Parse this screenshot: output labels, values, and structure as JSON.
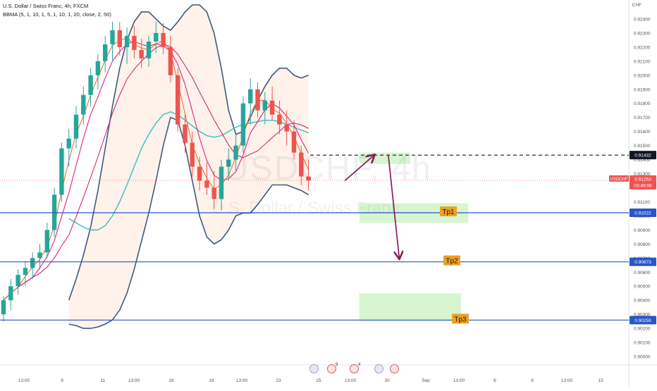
{
  "header": {
    "symbol_line": "U.S. Dollar / Swiss Franc, 4h, FXCM",
    "indicator_line": "BBMA (5, 1, 10, 1, 5, 1, 10, 1, 20, close, 2, 50)"
  },
  "watermark": {
    "ticker": "USDCHF, 4h",
    "name": "U.S. Dollar / Swiss Franc"
  },
  "currency_badge": "CHF",
  "chart_data": {
    "type": "candlestick",
    "symbol": "USDCHF",
    "timeframe": "4h",
    "source": "FXCM",
    "ylim": [
      0.8995,
      0.925
    ],
    "y_ticks": [
      "0.90000",
      "0.90100",
      "0.90200",
      "0.90300",
      "0.90400",
      "0.90500",
      "0.90600",
      "0.90700",
      "0.90800",
      "0.90900",
      "0.91000",
      "0.91100",
      "0.91200",
      "0.91300",
      "0.91400",
      "0.91500",
      "0.91600",
      "0.91700",
      "0.91800",
      "0.91900",
      "0.92000",
      "0.92100",
      "0.92200",
      "0.92300",
      "0.92400"
    ],
    "x_ticks": [
      "13:00",
      "9",
      "11",
      "13:00",
      "16",
      "18",
      "13:00",
      "23",
      "25",
      "13:00",
      "30",
      "Sep",
      "13:00",
      "6",
      "8",
      "13:00",
      "13"
    ],
    "current_price": {
      "label": "USDCHF",
      "value": "0.91253",
      "countdown": "03:49:08",
      "y": 0.91253
    },
    "levels": [
      {
        "name": "entry",
        "label": "",
        "value": 0.91432,
        "price_label": "0.91432",
        "style": "dashed",
        "color": "#131722"
      },
      {
        "name": "tp1",
        "label": "Tp1",
        "value": 0.91022,
        "price_label": "0.91022",
        "style": "solid",
        "color": "#2a55c8"
      },
      {
        "name": "tp2",
        "label": "Tp2",
        "value": 0.90673,
        "price_label": "0.90673",
        "style": "solid",
        "color": "#2a55c8"
      },
      {
        "name": "tp3",
        "label": "Tp3",
        "value": 0.90259,
        "price_label": "0.90259",
        "style": "solid",
        "color": "#2a55c8"
      }
    ],
    "zones": [
      {
        "from": 0.9137,
        "to": 0.9145,
        "x0": 49,
        "x1": 56
      },
      {
        "from": 0.9095,
        "to": 0.9109,
        "x0": 49,
        "x1": 64
      },
      {
        "from": 0.9025,
        "to": 0.9045,
        "x0": 49,
        "x1": 63
      }
    ],
    "arrows": [
      {
        "from": [
          47,
          0.9125
        ],
        "to": [
          51,
          0.9143
        ]
      },
      {
        "from": [
          53,
          0.9143
        ],
        "to": [
          54.5,
          0.907
        ]
      }
    ],
    "candles": [
      [
        0.903,
        0.9043,
        0.9025,
        0.904
      ],
      [
        0.904,
        0.9055,
        0.9033,
        0.905
      ],
      [
        0.905,
        0.9062,
        0.9044,
        0.9058
      ],
      [
        0.9058,
        0.9068,
        0.905,
        0.9063
      ],
      [
        0.9063,
        0.9074,
        0.9055,
        0.907
      ],
      [
        0.907,
        0.908,
        0.9062,
        0.9074
      ],
      [
        0.9074,
        0.9095,
        0.907,
        0.909
      ],
      [
        0.909,
        0.912,
        0.9085,
        0.9115
      ],
      [
        0.9115,
        0.9152,
        0.911,
        0.9148
      ],
      [
        0.9148,
        0.9162,
        0.9135,
        0.9155
      ],
      [
        0.9155,
        0.9178,
        0.9148,
        0.9172
      ],
      [
        0.9172,
        0.9192,
        0.9165,
        0.9186
      ],
      [
        0.9186,
        0.9205,
        0.9178,
        0.92
      ],
      [
        0.92,
        0.9215,
        0.919,
        0.921
      ],
      [
        0.921,
        0.9228,
        0.9202,
        0.9222
      ],
      [
        0.9222,
        0.9238,
        0.921,
        0.9232
      ],
      [
        0.9232,
        0.9238,
        0.9214,
        0.922
      ],
      [
        0.922,
        0.9234,
        0.9208,
        0.9228
      ],
      [
        0.9228,
        0.9235,
        0.9212,
        0.9218
      ],
      [
        0.9218,
        0.9226,
        0.9205,
        0.9212
      ],
      [
        0.9212,
        0.9228,
        0.9206,
        0.9224
      ],
      [
        0.9224,
        0.9238,
        0.9216,
        0.923
      ],
      [
        0.923,
        0.9237,
        0.9215,
        0.922
      ],
      [
        0.922,
        0.9228,
        0.9195,
        0.92
      ],
      [
        0.92,
        0.9205,
        0.916,
        0.9165
      ],
      [
        0.9165,
        0.9172,
        0.9145,
        0.9152
      ],
      [
        0.9152,
        0.916,
        0.9128,
        0.9135
      ],
      [
        0.9135,
        0.9142,
        0.9118,
        0.9125
      ],
      [
        0.9125,
        0.9138,
        0.9115,
        0.912
      ],
      [
        0.912,
        0.9132,
        0.9105,
        0.9112
      ],
      [
        0.9112,
        0.914,
        0.9104,
        0.9135
      ],
      [
        0.9135,
        0.9148,
        0.9125,
        0.914
      ],
      [
        0.914,
        0.9158,
        0.9132,
        0.915
      ],
      [
        0.915,
        0.9185,
        0.9145,
        0.918
      ],
      [
        0.918,
        0.9198,
        0.9165,
        0.919
      ],
      [
        0.919,
        0.9195,
        0.917,
        0.9175
      ],
      [
        0.9175,
        0.9188,
        0.9165,
        0.9182
      ],
      [
        0.9182,
        0.9192,
        0.9168,
        0.9172
      ],
      [
        0.9172,
        0.9182,
        0.9158,
        0.9165
      ],
      [
        0.9165,
        0.9175,
        0.915,
        0.916
      ],
      [
        0.916,
        0.9168,
        0.914,
        0.9145
      ],
      [
        0.9145,
        0.915,
        0.9122,
        0.9128
      ],
      [
        0.9128,
        0.914,
        0.9118,
        0.9125
      ]
    ],
    "bb_upper": [
      0.904,
      0.9055,
      0.9072,
      0.9092,
      0.9118,
      0.9148,
      0.9178,
      0.9205,
      0.9225,
      0.9238,
      0.9245,
      0.9245,
      0.924,
      0.9235,
      0.9232,
      0.9238,
      0.9245,
      0.925,
      0.925,
      0.9245,
      0.923,
      0.9205,
      0.9175,
      0.9158,
      0.916,
      0.917,
      0.9182,
      0.9192,
      0.92,
      0.9205,
      0.9205,
      0.92,
      0.9198,
      0.92
    ],
    "bb_lower": [
      0.9023,
      0.9022,
      0.902,
      0.902,
      0.9021,
      0.9023,
      0.9026,
      0.9033,
      0.9045,
      0.9062,
      0.9082,
      0.9102,
      0.9125,
      0.915,
      0.917,
      0.9168,
      0.915,
      0.9125,
      0.91,
      0.9085,
      0.908,
      0.9083,
      0.909,
      0.91,
      0.9102,
      0.9102,
      0.9108,
      0.9115,
      0.9122,
      0.9122,
      0.9122,
      0.912,
      0.9118,
      0.9115
    ],
    "ma50": [
      0.9098,
      0.9095,
      0.9092,
      0.909,
      0.909,
      0.9093,
      0.91,
      0.911,
      0.9122,
      0.9135,
      0.9148,
      0.9158,
      0.9166,
      0.9172,
      0.9174,
      0.9172,
      0.9168,
      0.9164,
      0.916,
      0.9157,
      0.9156,
      0.9157,
      0.916,
      0.9163,
      0.9165,
      0.9166,
      0.9167,
      0.9168,
      0.9168,
      0.9167,
      0.9165,
      0.9163,
      0.9161,
      0.9159
    ]
  },
  "events": [
    {
      "type": "us"
    },
    {
      "type": "ch",
      "count": "9"
    },
    {
      "type": "ch",
      "count": "4"
    },
    {
      "type": "us"
    },
    {
      "type": "ch"
    }
  ]
}
